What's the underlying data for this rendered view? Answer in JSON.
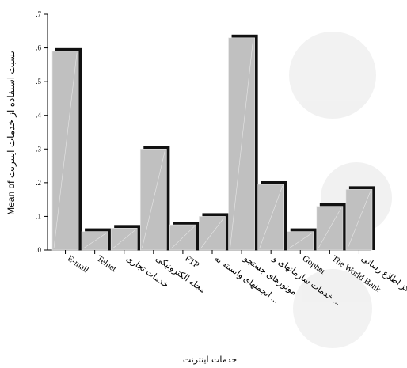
{
  "chart_data": {
    "type": "bar",
    "categories": [
      "E-mail",
      "Telnet",
      "خدمات تجاری",
      "مجله الکترونیکی",
      "FTP",
      "انجمنهای وابسته به ...",
      "موتورهای جستجو",
      "خدمات سازمانهای و ...",
      "Gopher",
      "The World Bank",
      "مراکز اطلاع رسانی"
    ],
    "values": [
      0.59,
      0.055,
      0.065,
      0.3,
      0.075,
      0.1,
      0.63,
      0.195,
      0.055,
      0.13,
      0.18
    ],
    "ylim": [
      0,
      0.7
    ],
    "yticks": [
      ".0",
      ".1",
      ".2",
      ".3",
      ".4",
      ".5",
      ".6",
      ".7"
    ],
    "ylabel": "Mean of نسبت استفاده از خدمات اینترنت",
    "xlabel": "خدمات اینترنت",
    "grid": false,
    "legend": "none",
    "bar_color": "#c0c0c0",
    "shadow_color": "#111111"
  }
}
